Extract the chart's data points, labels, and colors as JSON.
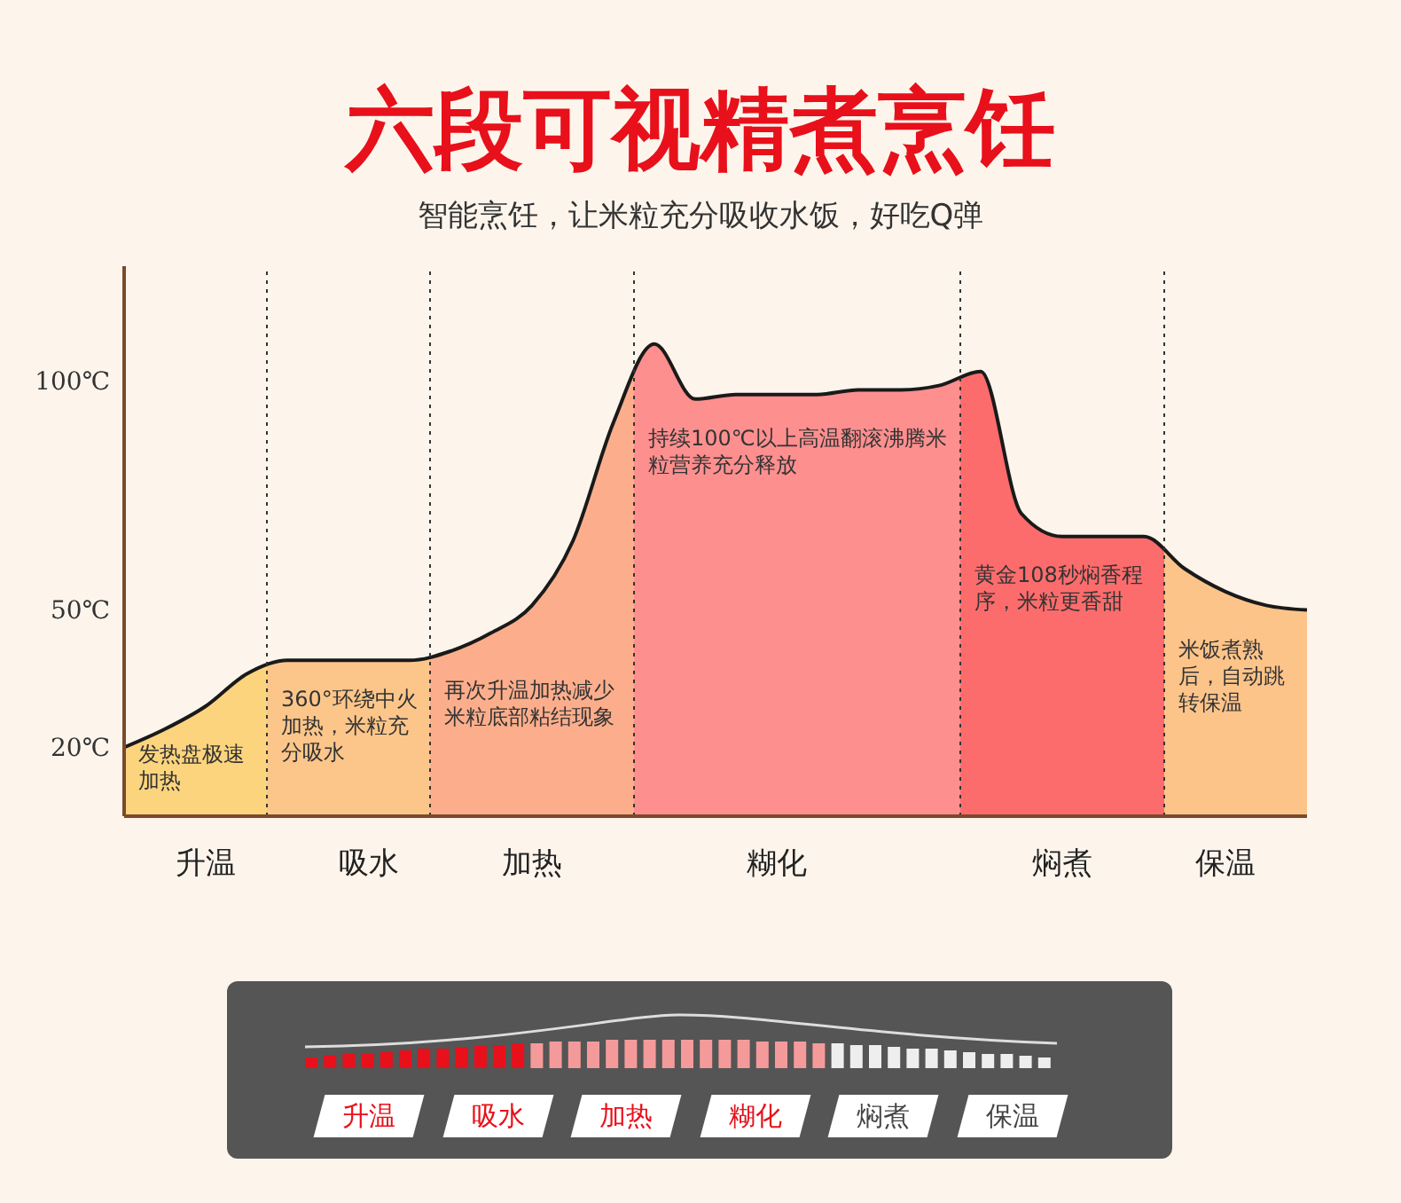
{
  "chart_data": {
    "type": "area",
    "title": "六段可视精煮烹饪",
    "subtitle": "智能烹饪，让米粒充分吸收水饭，好吃Q弹",
    "categories": [
      null,
      null,
      "升温",
      null,
      null,
      null,
      "吸水",
      null,
      null,
      null,
      "加热",
      null,
      null,
      null,
      null,
      null,
      "糊化",
      null,
      null,
      null,
      null,
      null,
      null,
      "焖煮",
      null,
      null,
      null,
      "保温",
      null,
      null
    ],
    "values": [
      20,
      24,
      29,
      36,
      39,
      39,
      39,
      39,
      41,
      45,
      51,
      65,
      91,
      108,
      96,
      97,
      97,
      97,
      98,
      98,
      99,
      102,
      71,
      66,
      66,
      66,
      59,
      54,
      51,
      50
    ],
    "color": "#1a1a1a",
    "colors": [
      "#fcd47e",
      "#fcd47e",
      "#fcd47e",
      "#fcd47e",
      "#fcc68a",
      "#fcc68a",
      "#fcc68a",
      "#fcc68a",
      "#fcae8c",
      "#fcae8c",
      "#fcae8c",
      "#fcae8c",
      "#fcae8c",
      "#fe8f8f",
      "#fe8f8f",
      "#fe8f8f",
      "#fe8f8f",
      "#fe8f8f",
      "#fe8f8f",
      "#fe8f8f",
      "#fe8f8f",
      "#fd6c6c",
      "#fd6c6c",
      "#fd6c6c",
      "#fd6c6c",
      "#fd6c6c",
      "#fdc48a",
      "#fdc48a",
      "#fdc48a",
      "#fdc48a"
    ],
    "ylim": [
      5,
      125
    ],
    "yticks": [
      {
        "value": 20,
        "label": "20℃"
      },
      {
        "value": 50,
        "label": "50℃"
      },
      {
        "value": 100,
        "label": "100℃"
      }
    ],
    "annotations": [
      "发热盘极速加热",
      "360°环绕中火加热，米粒充分吸水",
      "再次升温加热减少米粒底部粘结现象",
      "持续100℃以上高温翻滚沸腾米粒营养充分释放",
      "黄金108秒焖香程序，米粒更香甜",
      "米饭煮熟后，自动跳转保温",
      "升温",
      "吸水",
      "加热",
      "糊化",
      "焖煮",
      "保温"
    ]
  }
}
